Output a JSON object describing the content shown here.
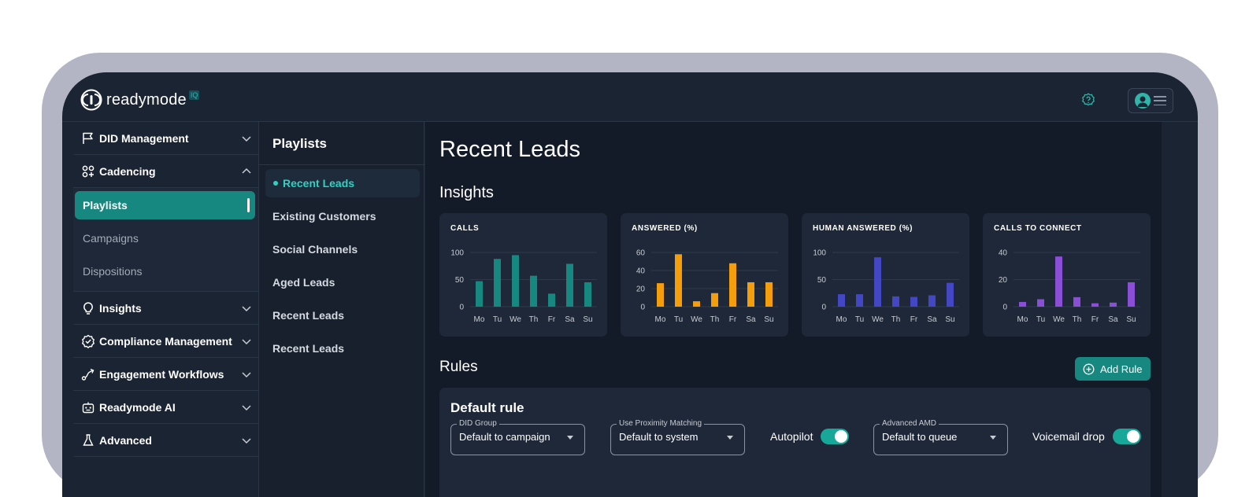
{
  "app": {
    "brand": "readymode",
    "brand_badge": "IQ"
  },
  "sidebar": {
    "items": [
      {
        "label": "DID Management",
        "icon": "flag-icon"
      },
      {
        "label": "Cadencing",
        "icon": "cadence-icon"
      },
      {
        "label": "Insights",
        "icon": "lightbulb-icon"
      },
      {
        "label": "Compliance Management",
        "icon": "badge-check-icon"
      },
      {
        "label": "Engagement Workflows",
        "icon": "workflow-icon"
      },
      {
        "label": "Readymode AI",
        "icon": "robot-icon"
      },
      {
        "label": "Advanced",
        "icon": "flask-icon"
      }
    ],
    "sub_items": [
      "Playlists",
      "Campaigns",
      "Dispositions"
    ]
  },
  "playlists": {
    "title": "Playlists",
    "items": [
      "Recent Leads",
      "Existing Customers",
      "Social Channels",
      "Aged Leads",
      "Recent Leads",
      "Recent Leads"
    ]
  },
  "main": {
    "title": "Recent Leads",
    "insights_title": "Insights",
    "rules_title": "Rules",
    "add_rule_label": "Add Rule",
    "rule": {
      "title": "Default rule",
      "fields": [
        {
          "label": "DID Group",
          "value": "Default to campaign"
        },
        {
          "label": "Use Proximity Matching",
          "value": "Default to system"
        },
        {
          "label": "Advanced AMD",
          "value": "Default to queue"
        }
      ],
      "toggles": [
        {
          "label": "Autopilot",
          "on": true
        },
        {
          "label": "Voicemail drop",
          "on": true
        }
      ]
    }
  },
  "chart_data": [
    {
      "type": "bar",
      "title": "CALLS",
      "categories": [
        "Mo",
        "Tu",
        "We",
        "Th",
        "Fr",
        "Sa",
        "Su"
      ],
      "values": [
        47,
        88,
        95,
        57,
        24,
        79,
        45
      ],
      "yticks": [
        0,
        50,
        100
      ],
      "ylim": [
        0,
        100
      ],
      "color": "#17887f",
      "grid": true
    },
    {
      "type": "bar",
      "title": "ANSWERED (%)",
      "categories": [
        "Mo",
        "Tu",
        "We",
        "Th",
        "Fr",
        "Sa",
        "Su"
      ],
      "values": [
        26,
        58,
        6,
        15,
        48,
        27,
        27
      ],
      "yticks": [
        0,
        20,
        40,
        60
      ],
      "ylim": [
        0,
        60
      ],
      "color": "#f59e0b",
      "grid": true
    },
    {
      "type": "bar",
      "title": "HUMAN ANSWERED (%)",
      "categories": [
        "Mo",
        "Tu",
        "We",
        "Th",
        "Fr",
        "Sa",
        "Su"
      ],
      "values": [
        23,
        23,
        91,
        19,
        18,
        21,
        44
      ],
      "yticks": [
        0,
        50,
        100
      ],
      "ylim": [
        0,
        100
      ],
      "color": "#4347c4",
      "grid": true
    },
    {
      "type": "bar",
      "title": "CALLS TO CONNECT",
      "categories": [
        "Mo",
        "Tu",
        "We",
        "Th",
        "Fr",
        "Sa",
        "Su"
      ],
      "values": [
        3.5,
        5.5,
        37,
        7,
        2.5,
        3,
        18
      ],
      "yticks": [
        0,
        20,
        40
      ],
      "ylim": [
        0,
        40
      ],
      "color": "#8a4fd6",
      "grid": true
    }
  ]
}
